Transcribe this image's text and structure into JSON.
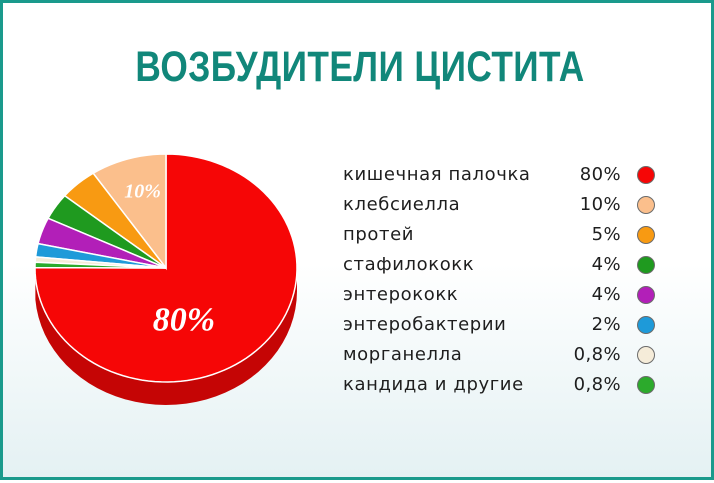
{
  "page": {
    "title": "ВОЗБУДИТЕЛИ ЦИСТИТА",
    "border_color": "#1a9a8c",
    "title_color": "#11877a"
  },
  "chart_data": {
    "type": "pie",
    "title": "ВОЗБУДИТЕЛИ ЦИСТИТА",
    "slices": [
      {
        "label": "кишечная палочка",
        "value": 80,
        "value_text": "80%",
        "color": "#f60606",
        "pie_label": "80%"
      },
      {
        "label": "клебсиелла",
        "value": 10,
        "value_text": "10%",
        "color": "#fbbf8c",
        "pie_label": "10%"
      },
      {
        "label": "протей",
        "value": 5,
        "value_text": "5%",
        "color": "#f89a12",
        "pie_label": ""
      },
      {
        "label": "стафилококк",
        "value": 4,
        "value_text": "4%",
        "color": "#1f9a1f",
        "pie_label": ""
      },
      {
        "label": "энтерококк",
        "value": 4,
        "value_text": "4%",
        "color": "#b21fb8",
        "pie_label": ""
      },
      {
        "label": "энтеробактерии",
        "value": 2,
        "value_text": "2%",
        "color": "#1e9ad9",
        "pie_label": ""
      },
      {
        "label": "морганелла",
        "value": 0.8,
        "value_text": "0,8%",
        "color": "#f5ecd9",
        "pie_label": ""
      },
      {
        "label": "кандида и другие",
        "value": 0.8,
        "value_text": "0,8%",
        "color": "#2caa2c",
        "pie_label": ""
      }
    ],
    "legend_position": "right"
  }
}
